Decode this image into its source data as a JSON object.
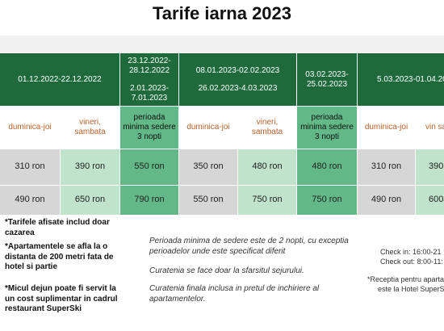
{
  "title": "Tarife iarna 2023",
  "table": {
    "header": [
      "01.12.2022-22.12.2022",
      [
        "23.12.2022-28.12.2022",
        "2.01.2023-7.01.2023"
      ],
      [
        "08.01.2023-02.02.2023",
        "26.02.2023-4.03.2023"
      ],
      "03.02.2023-25.02.2023",
      "5.03.2023-01.04.20"
    ],
    "subheader": [
      "duminica-joi",
      "vineri, sambata",
      "perioada minima sedere 3 nopti",
      "duminica-joi",
      "vineri, sambata",
      "perioada minima sedere 3 nopti",
      "duminica-joi",
      "vin sam"
    ],
    "rows": [
      [
        "310 ron",
        "390 ron",
        "550 ron",
        "350 ron",
        "480 ron",
        "480 ron",
        "310 ron",
        "390"
      ],
      [
        "490 ron",
        "650 ron",
        "790 ron",
        "550 ron",
        "750 ron",
        "750 ron",
        "490 ron",
        "600"
      ]
    ]
  },
  "notes": {
    "left": [
      "*Tarifele afisate includ doar cazarea",
      "*Apartamentele se afla la o distanta de 200 metri fata de hotel si partie",
      "*Micul dejun poate fi servit la un cost suplimentar in cadrul restaurant SuperSki"
    ],
    "middle": [
      "Perioada minima de sedere este de 2 nopti, cu exceptia perioadelor unde este specificat diferit",
      "Curatenia se face doar la sfarsitul sejurului.",
      "Curatenia finala inclusa in pretul de inchiriere al apartamentelor."
    ],
    "right": [
      "Check in: 16:00-21",
      "Check out: 8:00-11:",
      "*Receptia pentru aparta",
      "este la Hotel SuperS"
    ]
  }
}
